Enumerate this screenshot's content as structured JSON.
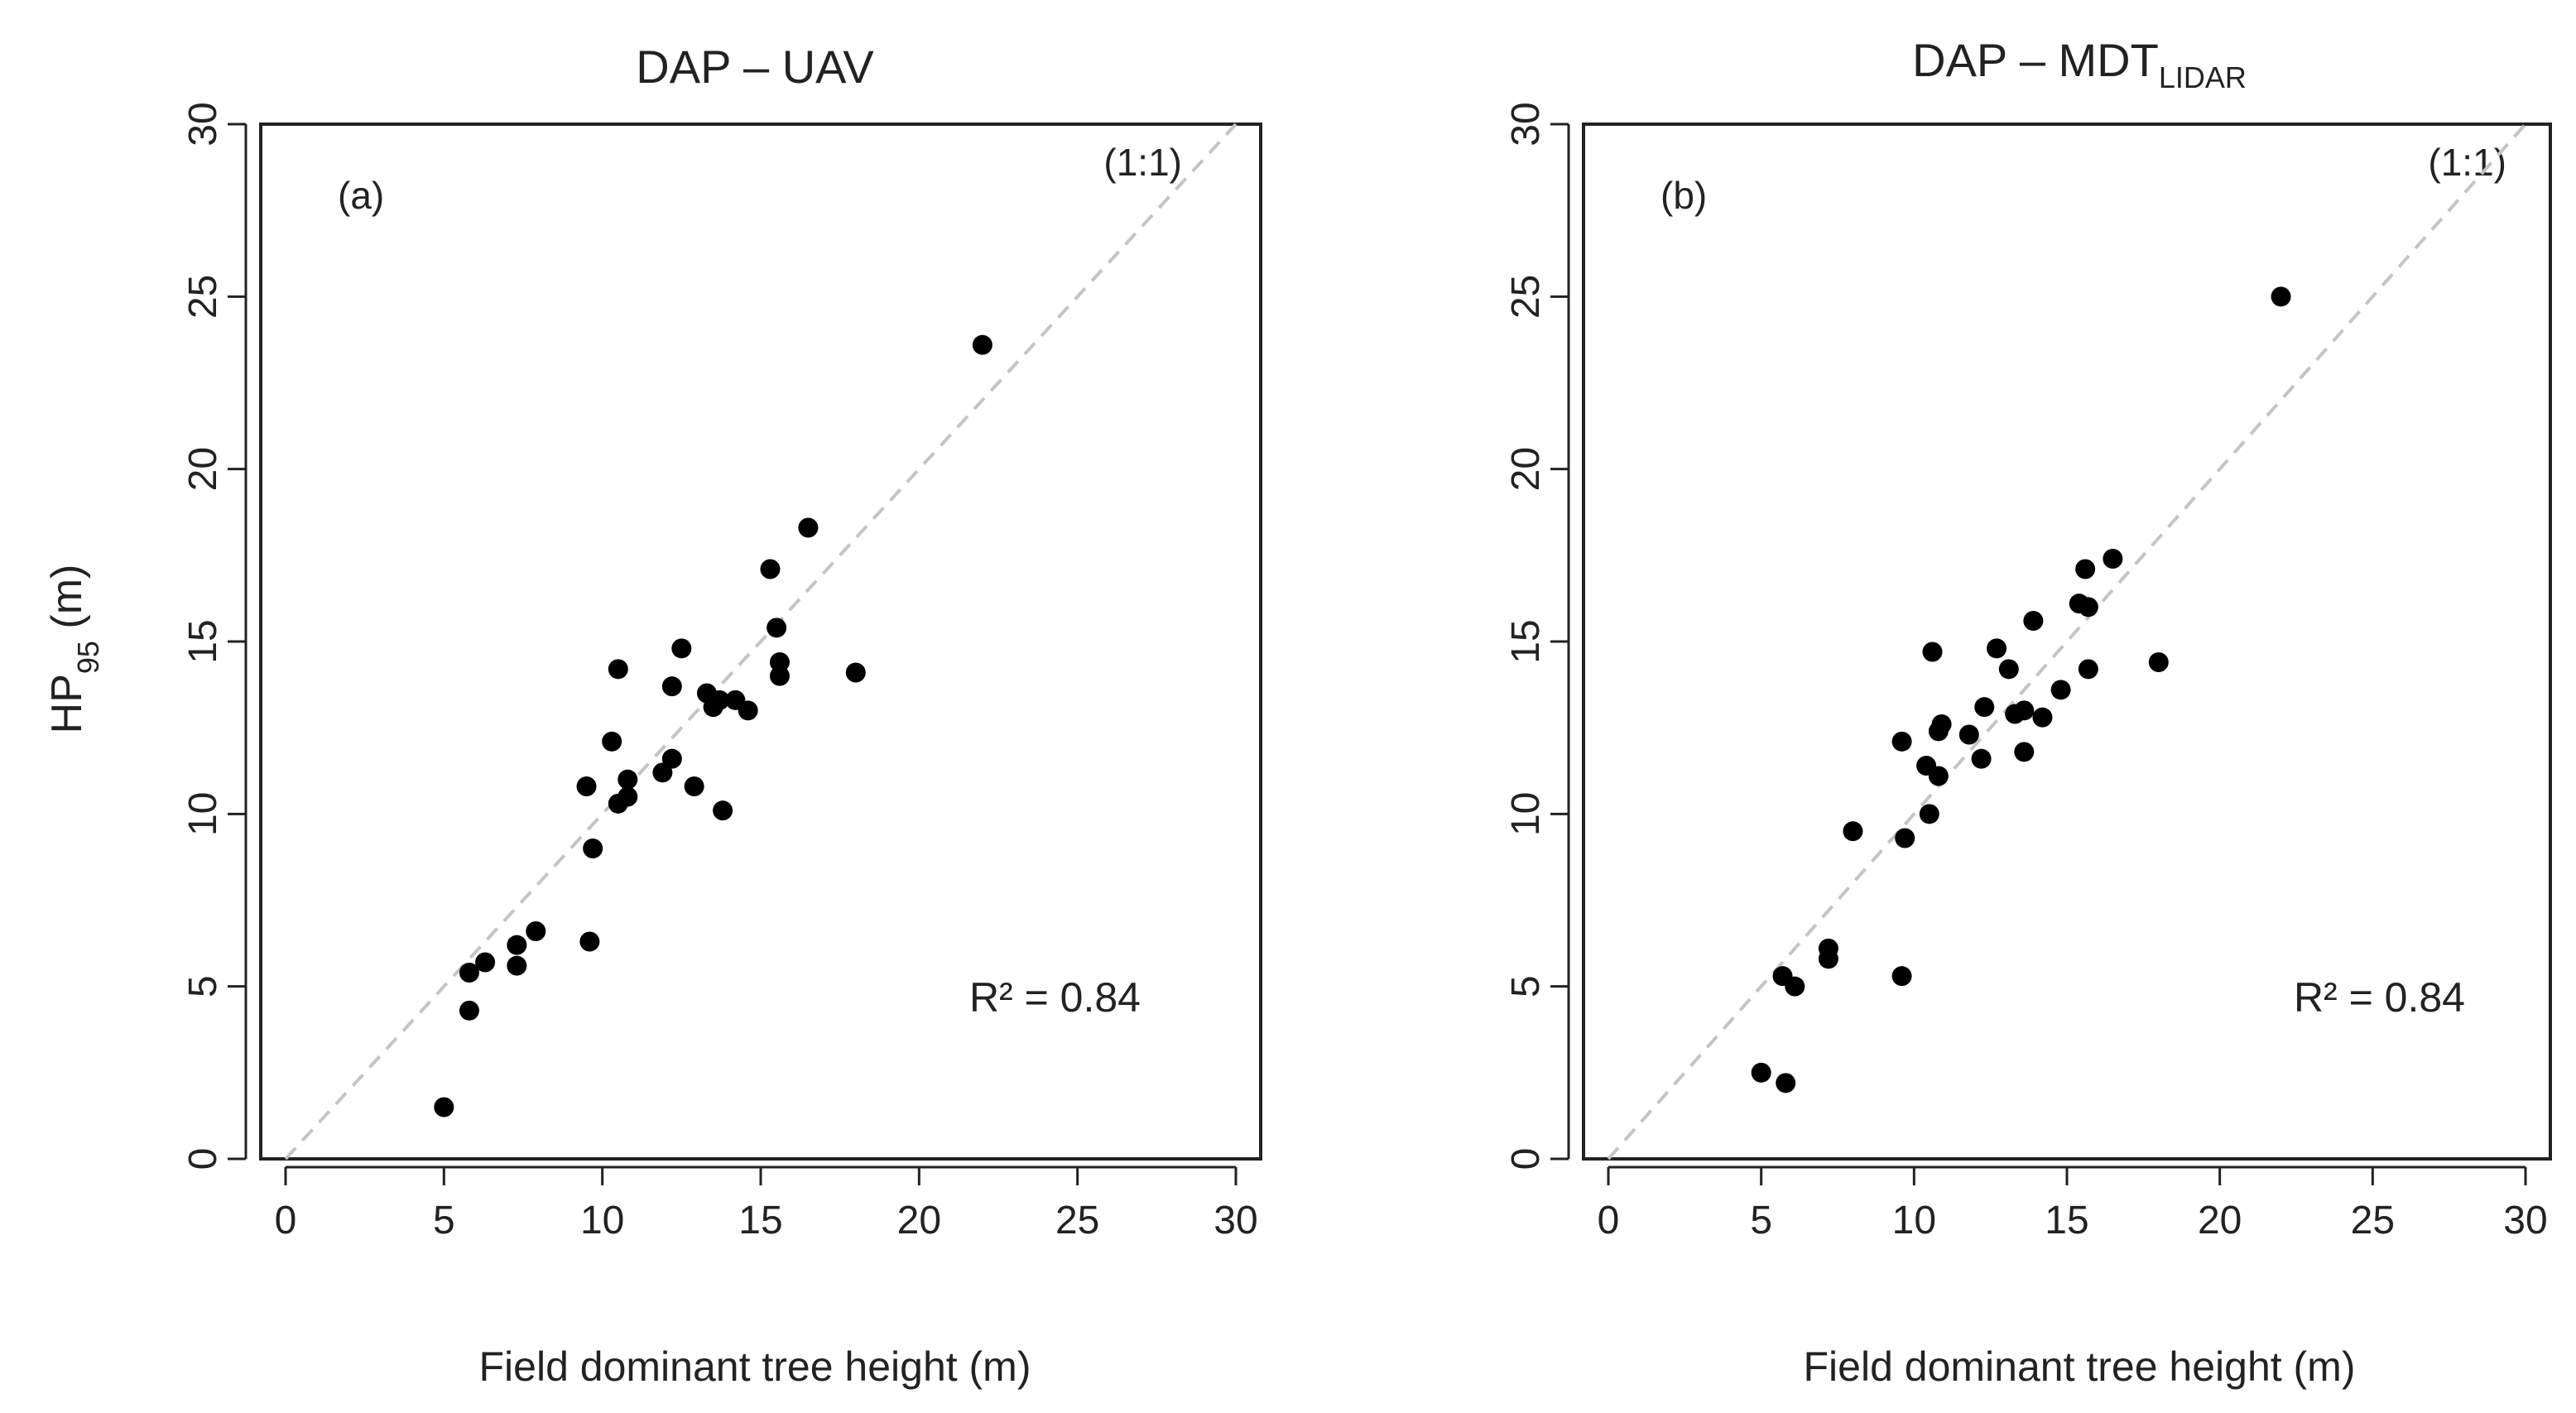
{
  "chart_data": [
    {
      "type": "scatter",
      "title": "DAP – UAV",
      "title_sub": "",
      "panel_label": "(a)",
      "reference_line": "(1:1)",
      "r2_text": "R² = 0.84",
      "xlabel": "Field dominant tree height (m)",
      "ylabel": "HP",
      "ylabel_sub": "95",
      "ylabel_suffix": " (m)",
      "xlim": [
        0,
        30
      ],
      "ylim": [
        0,
        30
      ],
      "xticks": [
        "0",
        "5",
        "10",
        "15",
        "20",
        "25",
        "30"
      ],
      "yticks": [
        "0",
        "5",
        "10",
        "15",
        "20",
        "25",
        "30"
      ],
      "points": [
        [
          5.0,
          1.5
        ],
        [
          5.8,
          4.3
        ],
        [
          5.8,
          5.4
        ],
        [
          6.3,
          5.7
        ],
        [
          7.3,
          5.6
        ],
        [
          7.3,
          6.2
        ],
        [
          7.9,
          6.6
        ],
        [
          9.6,
          6.3
        ],
        [
          9.7,
          9.0
        ],
        [
          9.5,
          10.8
        ],
        [
          10.3,
          12.1
        ],
        [
          10.5,
          10.3
        ],
        [
          10.8,
          10.5
        ],
        [
          10.8,
          11.0
        ],
        [
          10.5,
          14.2
        ],
        [
          11.9,
          11.2
        ],
        [
          12.2,
          11.6
        ],
        [
          12.2,
          13.7
        ],
        [
          12.5,
          14.8
        ],
        [
          12.9,
          10.8
        ],
        [
          13.3,
          13.5
        ],
        [
          13.5,
          13.1
        ],
        [
          13.7,
          13.3
        ],
        [
          13.8,
          10.1
        ],
        [
          14.2,
          13.3
        ],
        [
          14.6,
          13.0
        ],
        [
          15.3,
          17.1
        ],
        [
          15.5,
          15.4
        ],
        [
          15.6,
          14.4
        ],
        [
          15.6,
          14.0
        ],
        [
          16.5,
          18.3
        ],
        [
          18.0,
          14.1
        ],
        [
          22.0,
          23.6
        ]
      ]
    },
    {
      "type": "scatter",
      "title": "DAP – MDT",
      "title_sub": "LIDAR",
      "panel_label": "(b)",
      "reference_line": "(1:1)",
      "r2_text": "R² = 0.84",
      "xlabel": "Field dominant tree height (m)",
      "xlim": [
        0,
        30
      ],
      "ylim": [
        0,
        30
      ],
      "xticks": [
        "0",
        "5",
        "10",
        "15",
        "20",
        "25",
        "30"
      ],
      "yticks": [
        "0",
        "5",
        "10",
        "15",
        "20",
        "25",
        "30"
      ],
      "points": [
        [
          5.0,
          2.5
        ],
        [
          5.8,
          2.2
        ],
        [
          5.7,
          5.3
        ],
        [
          6.1,
          5.0
        ],
        [
          7.2,
          5.8
        ],
        [
          7.2,
          6.1
        ],
        [
          8.0,
          9.5
        ],
        [
          9.6,
          5.3
        ],
        [
          9.6,
          12.1
        ],
        [
          9.7,
          9.3
        ],
        [
          10.4,
          11.4
        ],
        [
          10.5,
          10.0
        ],
        [
          10.6,
          14.7
        ],
        [
          10.8,
          12.4
        ],
        [
          10.8,
          11.1
        ],
        [
          10.9,
          12.6
        ],
        [
          11.8,
          12.3
        ],
        [
          12.2,
          11.6
        ],
        [
          12.3,
          13.1
        ],
        [
          12.7,
          14.8
        ],
        [
          13.1,
          14.2
        ],
        [
          13.3,
          12.9
        ],
        [
          13.6,
          13.0
        ],
        [
          13.6,
          11.8
        ],
        [
          13.9,
          15.6
        ],
        [
          14.2,
          12.8
        ],
        [
          14.8,
          13.6
        ],
        [
          15.4,
          16.1
        ],
        [
          15.7,
          16.0
        ],
        [
          15.6,
          17.1
        ],
        [
          15.7,
          14.2
        ],
        [
          16.5,
          17.4
        ],
        [
          18.0,
          14.4
        ],
        [
          22.0,
          25.0
        ]
      ]
    }
  ]
}
